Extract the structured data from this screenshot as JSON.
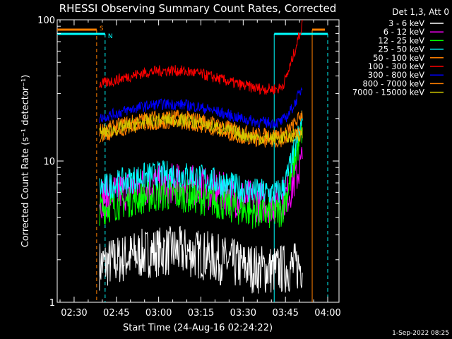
{
  "chart_data": {
    "type": "line",
    "title": "RHESSI Observing Summary Count Rates, Corrected",
    "xlabel": "Start Time (24-Aug-16 02:24:22)",
    "ylabel": "Corrected Count Rate (s⁻¹ detector⁻¹)",
    "y_scale": "log",
    "ylim": [
      1,
      100
    ],
    "xlim": [
      "02:24",
      "04:04"
    ],
    "x_ticks": [
      "02:30",
      "02:45",
      "03:00",
      "03:15",
      "03:30",
      "03:45",
      "04:00"
    ],
    "y_ticks": [
      "1",
      "10",
      "100"
    ],
    "legend_title": "Det 1,3, Att 0",
    "legend_position": "top-right",
    "timestamp": "1-Sep-2022 08:25",
    "flags": [
      {
        "label": "S",
        "color": "#ff7f00",
        "x_start": "02:24",
        "x_end": "02:38",
        "reference_end": "04:00"
      },
      {
        "label": "N",
        "color": "#00ffff",
        "x_start": "02:24",
        "x_end": "02:41",
        "reference_start": "03:41",
        "reference_end": "04:00"
      }
    ],
    "data_start": "02:39",
    "data_end": "03:51",
    "series": [
      {
        "name": "3 - 6 keV",
        "color": "#ffffff",
        "level": 2.0,
        "noise": 0.18,
        "rise": 0.0
      },
      {
        "name": "6 - 12 keV",
        "color": "#ff00ff",
        "level": 6.0,
        "noise": 0.15,
        "rise": 2.5
      },
      {
        "name": "12 - 25 keV",
        "color": "#00ff00",
        "level": 5.0,
        "noise": 0.12,
        "rise": 8.0
      },
      {
        "name": "25 - 50 keV",
        "color": "#00ffff",
        "level": 7.0,
        "noise": 0.1,
        "rise": 6.0
      },
      {
        "name": "50 - 100 keV",
        "color": "#ff7f00",
        "level": 18.0,
        "noise": 0.05,
        "rise": 1.0
      },
      {
        "name": "100 - 300 keV",
        "color": "#ff0000",
        "level": 38.0,
        "noise": 0.04,
        "rise": 5.0
      },
      {
        "name": "300 - 800 keV",
        "color": "#0000ff",
        "level": 22.0,
        "noise": 0.04,
        "rise": 2.0
      },
      {
        "name": "800 - 7000 keV",
        "color": "#ff7f00",
        "level": 16.0,
        "noise": 0.04,
        "rise": 0.5
      },
      {
        "name": "7000 - 15000 keV",
        "color": "#d2c800",
        "level": 17.0,
        "noise": 0.05,
        "rise": 0.0
      }
    ]
  }
}
